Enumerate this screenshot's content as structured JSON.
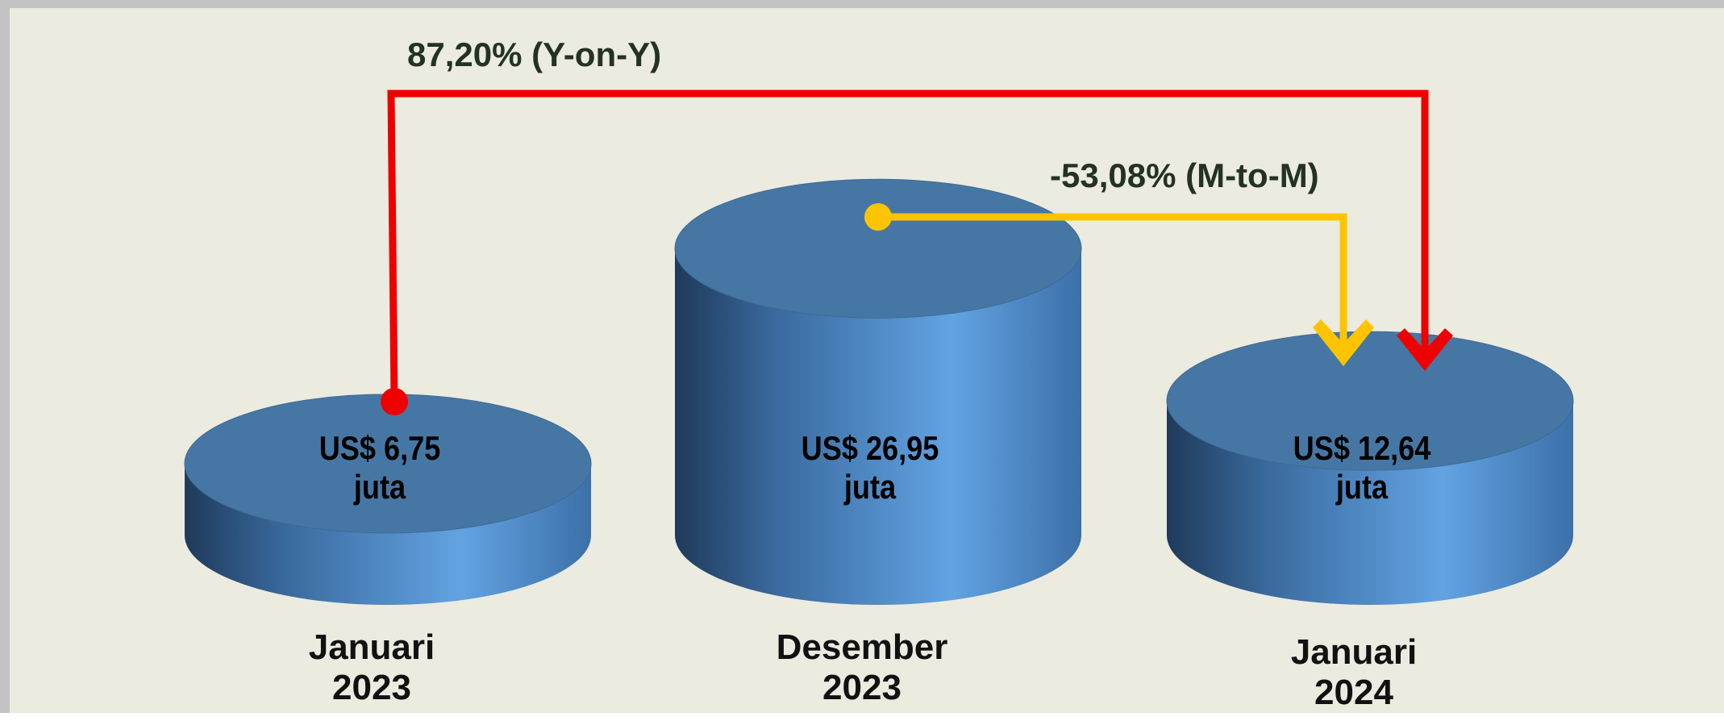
{
  "chart_data": {
    "type": "cylinder",
    "categories": [
      "Januari 2023",
      "Desember 2023",
      "Januari 2024"
    ],
    "values": [
      6.75,
      26.95,
      12.64
    ],
    "value_labels": [
      "US$ 6,75 juta",
      "US$ 26,95 juta",
      "US$ 12,64 juta"
    ],
    "color": "#4a7fb5",
    "annotations": [
      "87,20% (Y-on-Y)",
      "-53,08% (M-to-M)"
    ]
  }
}
